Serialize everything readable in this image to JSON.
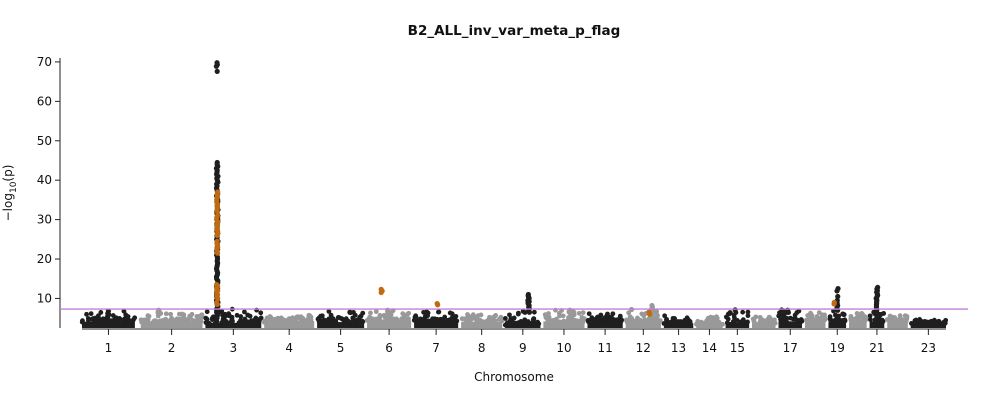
{
  "chart_data": {
    "type": "scatter",
    "subtype": "manhattan",
    "title": "B2_ALL_inv_var_meta_p_flag",
    "xlabel": "Chromosome",
    "ylabel_main": "−log",
    "ylabel_sub": "10",
    "ylabel_tail": "(p)",
    "ylim": [
      2.5,
      71
    ],
    "yticks": [
      10,
      20,
      30,
      40,
      50,
      60,
      70
    ],
    "threshold": 7.3,
    "grid": false,
    "colors": {
      "odd_chrom": "#1f1f1f",
      "even_chrom": "#999999",
      "flagged": "#c06b10",
      "threshold_line": "#c080d8"
    },
    "chromosomes": [
      {
        "label": "1",
        "start": 0,
        "end": 18,
        "base": 4.1,
        "peak": 6.8
      },
      {
        "label": "2",
        "start": 20,
        "end": 41,
        "base": 4.2,
        "peak": 7.0
      },
      {
        "label": "3",
        "start": 42,
        "end": 61,
        "base": 3.8,
        "peak": 69.8
      },
      {
        "label": "4",
        "start": 62,
        "end": 79,
        "base": 4.3,
        "peak": 6.0
      },
      {
        "label": "5",
        "start": 80,
        "end": 96,
        "base": 4.0,
        "peak": 6.5
      },
      {
        "label": "6",
        "start": 97,
        "end": 112,
        "base": 4.4,
        "peak": 12.0
      },
      {
        "label": "7",
        "start": 113,
        "end": 128,
        "base": 4.3,
        "peak": 8.5
      },
      {
        "label": "8",
        "start": 129,
        "end": 143,
        "base": 4.1,
        "peak": 6.0
      },
      {
        "label": "9",
        "start": 144,
        "end": 156,
        "base": 3.5,
        "peak": 11.0
      },
      {
        "label": "10",
        "start": 157,
        "end": 171,
        "base": 4.2,
        "peak": 7.0
      },
      {
        "label": "11",
        "start": 172,
        "end": 184,
        "base": 4.4,
        "peak": 6.0
      },
      {
        "label": "12",
        "start": 185,
        "end": 197,
        "base": 4.3,
        "peak": 8.2
      },
      {
        "label": "13",
        "start": 198,
        "end": 208,
        "base": 3.7,
        "peak": 5.5
      },
      {
        "label": "14",
        "start": 209,
        "end": 218,
        "base": 3.6,
        "peak": 5.2
      },
      {
        "label": "15",
        "start": 219,
        "end": 227,
        "base": 3.8,
        "peak": 7.1
      },
      {
        "label": "16",
        "start": 228,
        "end": 236,
        "base": 4.0,
        "peak": 5.5
      },
      {
        "label": "17",
        "start": 237,
        "end": 245,
        "base": 4.2,
        "peak": 7.0
      },
      {
        "label": "18",
        "start": 246,
        "end": 253,
        "base": 4.3,
        "peak": 6.5
      },
      {
        "label": "19",
        "start": 254,
        "end": 260,
        "base": 4.2,
        "peak": 12.5
      },
      {
        "label": "20",
        "start": 261,
        "end": 267,
        "base": 4.6,
        "peak": 6.0
      },
      {
        "label": "21",
        "start": 268,
        "end": 273,
        "base": 4.2,
        "peak": 12.8
      },
      {
        "label": "22",
        "start": 274,
        "end": 281,
        "base": 4.5,
        "peak": 5.5
      },
      {
        "label": "23",
        "start": 282,
        "end": 294,
        "base": 3.8,
        "peak": 4.5
      }
    ],
    "xtick_labels": [
      "1",
      "2",
      "3",
      "4",
      "5",
      "6",
      "7",
      "8",
      "9",
      "10",
      "11",
      "12",
      "13",
      "14",
      "15",
      "17",
      "19",
      "21",
      "23"
    ],
    "hits": [
      {
        "chrom": "1",
        "x": 9,
        "values": [
          6.8,
          6.2,
          5.9,
          5.5
        ]
      },
      {
        "chrom": "2",
        "x": 26,
        "values": [
          7.0,
          6.5
        ]
      },
      {
        "chrom": "3",
        "x": 46,
        "values": [
          69.8,
          69.3,
          68.9,
          67.6,
          44.5,
          44,
          43.5,
          43,
          42.5,
          42,
          41.5,
          41,
          40.5,
          40,
          39.5,
          39,
          38.5,
          38,
          37.5,
          37,
          36.5,
          36,
          35.5,
          35,
          34.5,
          34,
          33.5,
          33,
          32.5,
          32,
          31.5,
          31,
          30.5,
          30,
          29.5,
          29,
          28.5,
          28,
          27.5,
          27,
          26.5,
          26,
          25.5,
          25,
          24.5,
          24,
          23.5,
          23,
          22.5,
          22,
          21.5,
          21,
          20.5,
          20,
          19.5,
          19,
          18.5,
          18,
          17.5,
          17,
          16.5,
          16,
          15.5,
          15,
          14.5,
          14,
          13.5,
          13,
          12.5,
          12,
          11.5,
          11,
          10.5,
          10,
          9.5,
          9,
          8.5,
          8,
          7.5,
          7,
          6.5,
          6,
          5.5,
          5
        ]
      },
      {
        "chrom": "5",
        "x": 91,
        "values": [
          6.5
        ]
      },
      {
        "chrom": "6",
        "x": 104,
        "values": [
          7.0,
          6.5
        ]
      },
      {
        "chrom": "9",
        "x": 152,
        "values": [
          11.0,
          10.7,
          10.4,
          10.1,
          9.8,
          9.5,
          9.2,
          8.9,
          8.6,
          8.2,
          7.8,
          7.4,
          7.0,
          6.5
        ]
      },
      {
        "chrom": "10",
        "x": 166,
        "values": [
          7.0,
          6.6
        ]
      },
      {
        "chrom": "12",
        "x": 187,
        "values": [
          7.2
        ]
      },
      {
        "chrom": "12",
        "x": 194,
        "values": [
          8.2,
          7.8,
          7.4,
          7.0,
          6.6,
          6.2
        ]
      },
      {
        "chrom": "15",
        "x": 222,
        "values": [
          7.1
        ]
      },
      {
        "chrom": "17",
        "x": 240,
        "values": [
          7.0,
          6.5
        ]
      },
      {
        "chrom": "19",
        "x": 257,
        "values": [
          12.5,
          11.9,
          10.5,
          9.5,
          8.8,
          8.2,
          7.6,
          7.0
        ]
      },
      {
        "chrom": "21",
        "x": 270.5,
        "values": [
          12.8,
          12.4,
          12.0,
          11.6,
          11.2,
          10.8,
          10.4,
          10.0,
          9.6,
          9.2,
          8.8,
          8.4,
          8.0,
          7.6,
          7.2,
          6.8,
          6.4,
          6.0,
          5.6
        ]
      }
    ],
    "flagged_points": [
      {
        "chrom": "3",
        "x": 46,
        "values": [
          37,
          36.5,
          36,
          35.5,
          35,
          34.5,
          34,
          33.5,
          33,
          32.5,
          32,
          31,
          30.5,
          30,
          29.5,
          29,
          28.5,
          28,
          27.5,
          27,
          26.5,
          26,
          24.5,
          24,
          23.5,
          23,
          22.5,
          22,
          21.5,
          13.5,
          13,
          12.5,
          12,
          11.5,
          11,
          10.5,
          10,
          9,
          8.5
        ]
      },
      {
        "chrom": "6",
        "x": 102,
        "values": [
          12.3,
          11.9,
          11.5
        ]
      },
      {
        "chrom": "7",
        "x": 121,
        "values": [
          8.7,
          8.4
        ]
      },
      {
        "chrom": "12",
        "x": 193,
        "values": [
          6.5,
          6.0
        ]
      },
      {
        "chrom": "19",
        "x": 256,
        "values": [
          9.0,
          8.6
        ]
      }
    ]
  }
}
